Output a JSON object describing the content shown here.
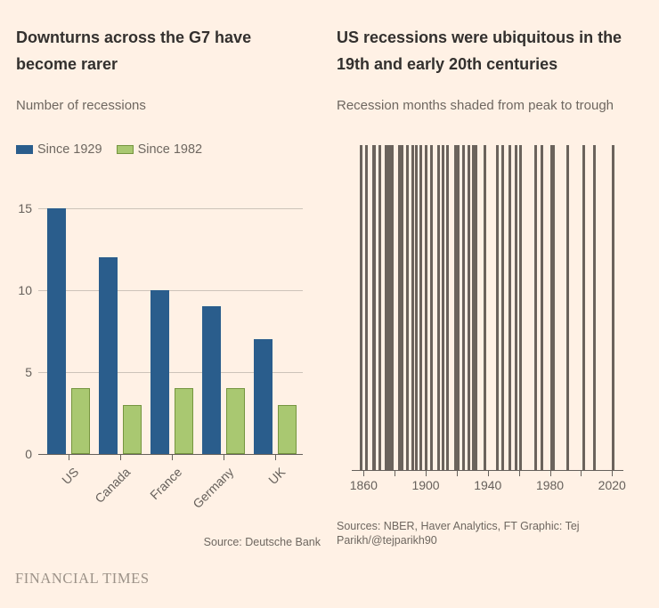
{
  "colors": {
    "background": "#fff1e5",
    "text_dark": "#33302e",
    "text_muted": "#6e6760",
    "gridline": "#cdc3b9",
    "axis": "#66605b",
    "stripe": "#6b635c",
    "series_blue": "#2a5d8c",
    "series_green": "#a9c871",
    "series_green_border": "#75953f",
    "brand": "#9c9288"
  },
  "left_panel": {
    "title": "Downturns across the G7 have become rarer",
    "subtitle": "Number of recessions",
    "source": "Source: Deutsche Bank"
  },
  "right_panel": {
    "title": "US recessions were ubiquitous in the 19th and early 20th centuries",
    "subtitle": "Recession months shaded from peak to trough",
    "source": "Sources: NBER, Haver Analytics, FT Graphic: Tej Parikh/@tejparikh90"
  },
  "footer": {
    "brand": "FINANCIAL TIMES"
  },
  "chart_data": [
    {
      "type": "bar",
      "subtype": "grouped-vertical",
      "title": "Downturns across the G7 have become rarer",
      "ylabel": "Number of recessions",
      "xlabel": "",
      "categories": [
        "US",
        "Canada",
        "France",
        "Germany",
        "UK"
      ],
      "series": [
        {
          "name": "Since 1929",
          "color": "#2a5d8c",
          "values": [
            15,
            12,
            10,
            9,
            7
          ]
        },
        {
          "name": "Since 1982",
          "color": "#a9c871",
          "border": "#75953f",
          "values": [
            4,
            3,
            4,
            4,
            3
          ]
        }
      ],
      "yticks": [
        0,
        5,
        10,
        15
      ],
      "ylim": [
        0,
        15
      ],
      "grid": true,
      "legend_position": "top"
    },
    {
      "type": "bar",
      "subtype": "event-timeline-stripes",
      "title": "US recessions were ubiquitous in the 19th and early 20th centuries",
      "ylabel": "Recession months shaded from peak to trough",
      "xlabel": "",
      "xlim": [
        1852.4,
        2027.3
      ],
      "x_tick_years": [
        1860,
        1880,
        1900,
        1920,
        1940,
        1960,
        1980,
        2000,
        2020
      ],
      "x_tick_labels": [
        "1860",
        "",
        "1900",
        "",
        "1940",
        "",
        "1980",
        "",
        "2020"
      ],
      "stripe_color": "#6b635c",
      "periods_unit": "decimal years, NBER peak to trough",
      "periods": [
        [
          1857.42,
          1858.92
        ],
        [
          1860.75,
          1861.42
        ],
        [
          1865.25,
          1867.92
        ],
        [
          1869.42,
          1870.92
        ],
        [
          1873.75,
          1879.17
        ],
        [
          1882.17,
          1885.33
        ],
        [
          1887.17,
          1888.25
        ],
        [
          1890.5,
          1891.33
        ],
        [
          1893.0,
          1894.42
        ],
        [
          1895.92,
          1897.42
        ],
        [
          1899.42,
          1900.92
        ],
        [
          1902.67,
          1904.58
        ],
        [
          1907.33,
          1908.42
        ],
        [
          1910.0,
          1912.0
        ],
        [
          1913.0,
          1914.92
        ],
        [
          1918.58,
          1919.17
        ],
        [
          1920.0,
          1921.5
        ],
        [
          1923.33,
          1924.5
        ],
        [
          1926.75,
          1927.83
        ],
        [
          1929.58,
          1933.17
        ],
        [
          1937.33,
          1938.42
        ],
        [
          1945.08,
          1945.75
        ],
        [
          1948.83,
          1949.75
        ],
        [
          1953.5,
          1954.33
        ],
        [
          1957.58,
          1958.25
        ],
        [
          1960.25,
          1961.08
        ],
        [
          1969.92,
          1970.83
        ],
        [
          1973.83,
          1975.17
        ],
        [
          1980.0,
          1980.5
        ],
        [
          1981.5,
          1982.83
        ],
        [
          1990.5,
          1991.17
        ],
        [
          2001.17,
          2001.83
        ],
        [
          2007.92,
          2009.42
        ],
        [
          2020.08,
          2020.25
        ]
      ]
    }
  ]
}
